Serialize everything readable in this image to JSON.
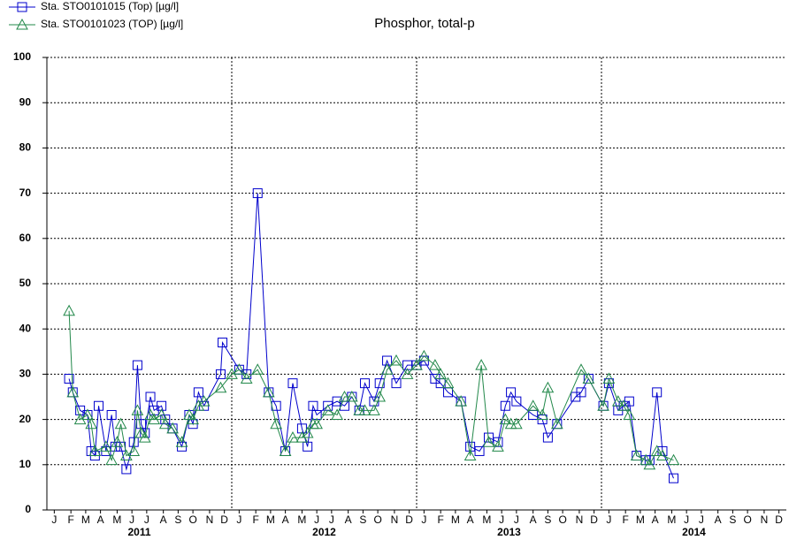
{
  "chart_data": {
    "type": "line",
    "title": "Phosphor, total-p",
    "xlim": [
      2011,
      2015
    ],
    "ylim": [
      0,
      100
    ],
    "yticks": [
      0,
      10,
      20,
      30,
      40,
      50,
      60,
      70,
      80,
      90,
      100
    ],
    "xticks": [
      {
        "value": 2011.04,
        "label": "J"
      },
      {
        "value": 2011.13,
        "label": "F"
      },
      {
        "value": 2011.21,
        "label": "M"
      },
      {
        "value": 2011.29,
        "label": "A"
      },
      {
        "value": 2011.38,
        "label": "M"
      },
      {
        "value": 2011.46,
        "label": "J"
      },
      {
        "value": 2011.54,
        "label": "J"
      },
      {
        "value": 2011.63,
        "label": "A"
      },
      {
        "value": 2011.71,
        "label": "S"
      },
      {
        "value": 2011.79,
        "label": "O"
      },
      {
        "value": 2011.88,
        "label": "N"
      },
      {
        "value": 2011.96,
        "label": "D"
      },
      {
        "value": 2012.04,
        "label": "J"
      },
      {
        "value": 2012.13,
        "label": "F"
      },
      {
        "value": 2012.21,
        "label": "M"
      },
      {
        "value": 2012.29,
        "label": "A"
      },
      {
        "value": 2012.38,
        "label": "M"
      },
      {
        "value": 2012.46,
        "label": "J"
      },
      {
        "value": 2012.54,
        "label": "J"
      },
      {
        "value": 2012.63,
        "label": "A"
      },
      {
        "value": 2012.71,
        "label": "S"
      },
      {
        "value": 2012.79,
        "label": "O"
      },
      {
        "value": 2012.88,
        "label": "N"
      },
      {
        "value": 2012.96,
        "label": "D"
      },
      {
        "value": 2013.04,
        "label": "J"
      },
      {
        "value": 2013.13,
        "label": "F"
      },
      {
        "value": 2013.21,
        "label": "M"
      },
      {
        "value": 2013.29,
        "label": "A"
      },
      {
        "value": 2013.38,
        "label": "M"
      },
      {
        "value": 2013.46,
        "label": "J"
      },
      {
        "value": 2013.54,
        "label": "J"
      },
      {
        "value": 2013.63,
        "label": "A"
      },
      {
        "value": 2013.71,
        "label": "S"
      },
      {
        "value": 2013.79,
        "label": "O"
      },
      {
        "value": 2013.88,
        "label": "N"
      },
      {
        "value": 2013.96,
        "label": "D"
      },
      {
        "value": 2014.04,
        "label": "J"
      },
      {
        "value": 2014.13,
        "label": "F"
      },
      {
        "value": 2014.21,
        "label": "M"
      },
      {
        "value": 2014.29,
        "label": "A"
      },
      {
        "value": 2014.38,
        "label": "M"
      },
      {
        "value": 2014.46,
        "label": "J"
      },
      {
        "value": 2014.54,
        "label": "J"
      },
      {
        "value": 2014.63,
        "label": "A"
      },
      {
        "value": 2014.71,
        "label": "S"
      },
      {
        "value": 2014.79,
        "label": "O"
      },
      {
        "value": 2014.88,
        "label": "N"
      },
      {
        "value": 2014.96,
        "label": "D"
      }
    ],
    "year_labels": [
      {
        "value": 2011.5,
        "label": "2011"
      },
      {
        "value": 2012.5,
        "label": "2012"
      },
      {
        "value": 2013.5,
        "label": "2013"
      },
      {
        "value": 2014.5,
        "label": "2014"
      }
    ],
    "xgrid_lines": [
      2012,
      2013,
      2014
    ],
    "grid": true,
    "legend": "top-left",
    "series": [
      {
        "name": "Sta. STO0101015 (Top) [µg/l]",
        "color": "#0000cc",
        "marker": "square",
        "x": [
          2011.12,
          2011.14,
          2011.18,
          2011.22,
          2011.24,
          2011.26,
          2011.28,
          2011.32,
          2011.35,
          2011.37,
          2011.4,
          2011.43,
          2011.47,
          2011.49,
          2011.51,
          2011.53,
          2011.56,
          2011.58,
          2011.62,
          2011.64,
          2011.68,
          2011.73,
          2011.77,
          2011.79,
          2011.82,
          2011.85,
          2011.94,
          2011.95,
          2012.04,
          2012.08,
          2012.14,
          2012.2,
          2012.24,
          2012.29,
          2012.33,
          2012.38,
          2012.41,
          2012.44,
          2012.46,
          2012.52,
          2012.57,
          2012.61,
          2012.65,
          2012.69,
          2012.72,
          2012.77,
          2012.8,
          2012.84,
          2012.89,
          2012.95,
          2013.0,
          2013.04,
          2013.1,
          2013.13,
          2013.17,
          2013.24,
          2013.29,
          2013.34,
          2013.39,
          2013.44,
          2013.48,
          2013.51,
          2013.54,
          2013.63,
          2013.68,
          2013.71,
          2013.76,
          2013.86,
          2013.89,
          2013.93,
          2014.01,
          2014.04,
          2014.09,
          2014.12,
          2014.15,
          2014.19,
          2014.24,
          2014.26,
          2014.3,
          2014.33,
          2014.39
        ],
        "values": [
          29,
          26,
          22,
          21,
          13,
          12,
          23,
          13,
          21,
          14,
          14,
          9,
          15,
          32,
          19,
          17,
          25,
          22,
          23,
          20,
          18,
          14,
          21,
          19,
          26,
          23,
          30,
          37,
          31,
          30,
          70,
          26,
          23,
          13,
          28,
          18,
          14,
          23,
          21,
          23,
          24,
          23,
          25,
          22,
          28,
          24,
          28,
          33,
          28,
          32,
          32,
          33,
          29,
          28,
          26,
          24,
          14,
          13,
          16,
          15,
          23,
          26,
          24,
          21,
          20,
          16,
          19,
          25,
          26,
          29,
          23,
          28,
          22,
          23,
          24,
          12,
          11,
          11,
          26,
          13,
          7
        ]
      },
      {
        "name": "Sta. STO0101023 (TOP) [µg/l]",
        "color": "#22884a",
        "marker": "triangle",
        "x": [
          2011.12,
          2011.14,
          2011.18,
          2011.22,
          2011.24,
          2011.26,
          2011.32,
          2011.35,
          2011.38,
          2011.4,
          2011.43,
          2011.47,
          2011.49,
          2011.51,
          2011.53,
          2011.56,
          2011.58,
          2011.62,
          2011.64,
          2011.68,
          2011.73,
          2011.77,
          2011.79,
          2011.82,
          2011.85,
          2011.94,
          2012.0,
          2012.04,
          2012.08,
          2012.14,
          2012.2,
          2012.24,
          2012.29,
          2012.33,
          2012.38,
          2012.41,
          2012.44,
          2012.46,
          2012.52,
          2012.57,
          2012.61,
          2012.65,
          2012.69,
          2012.72,
          2012.77,
          2012.8,
          2012.84,
          2012.89,
          2012.95,
          2013.0,
          2013.04,
          2013.1,
          2013.13,
          2013.17,
          2013.24,
          2013.29,
          2013.35,
          2013.39,
          2013.44,
          2013.48,
          2013.51,
          2013.54,
          2013.63,
          2013.68,
          2013.71,
          2013.76,
          2013.89,
          2013.93,
          2014.01,
          2014.04,
          2014.09,
          2014.12,
          2014.15,
          2014.19,
          2014.24,
          2014.26,
          2014.3,
          2014.33,
          2014.39
        ],
        "values": [
          44,
          26,
          20,
          21,
          19,
          13,
          14,
          11,
          15,
          19,
          12,
          13,
          22,
          17,
          16,
          21,
          20,
          21,
          19,
          18,
          15,
          21,
          20,
          23,
          24,
          27,
          30,
          31,
          29,
          31,
          26,
          19,
          13,
          16,
          16,
          17,
          19,
          19,
          22,
          21,
          25,
          25,
          22,
          22,
          22,
          25,
          31,
          33,
          30,
          32,
          34,
          32,
          30,
          28,
          24,
          12,
          32,
          15,
          14,
          20,
          19,
          19,
          23,
          21,
          27,
          19,
          31,
          29,
          23,
          29,
          24,
          23,
          21,
          12,
          11,
          10,
          13,
          12,
          11
        ]
      }
    ]
  }
}
